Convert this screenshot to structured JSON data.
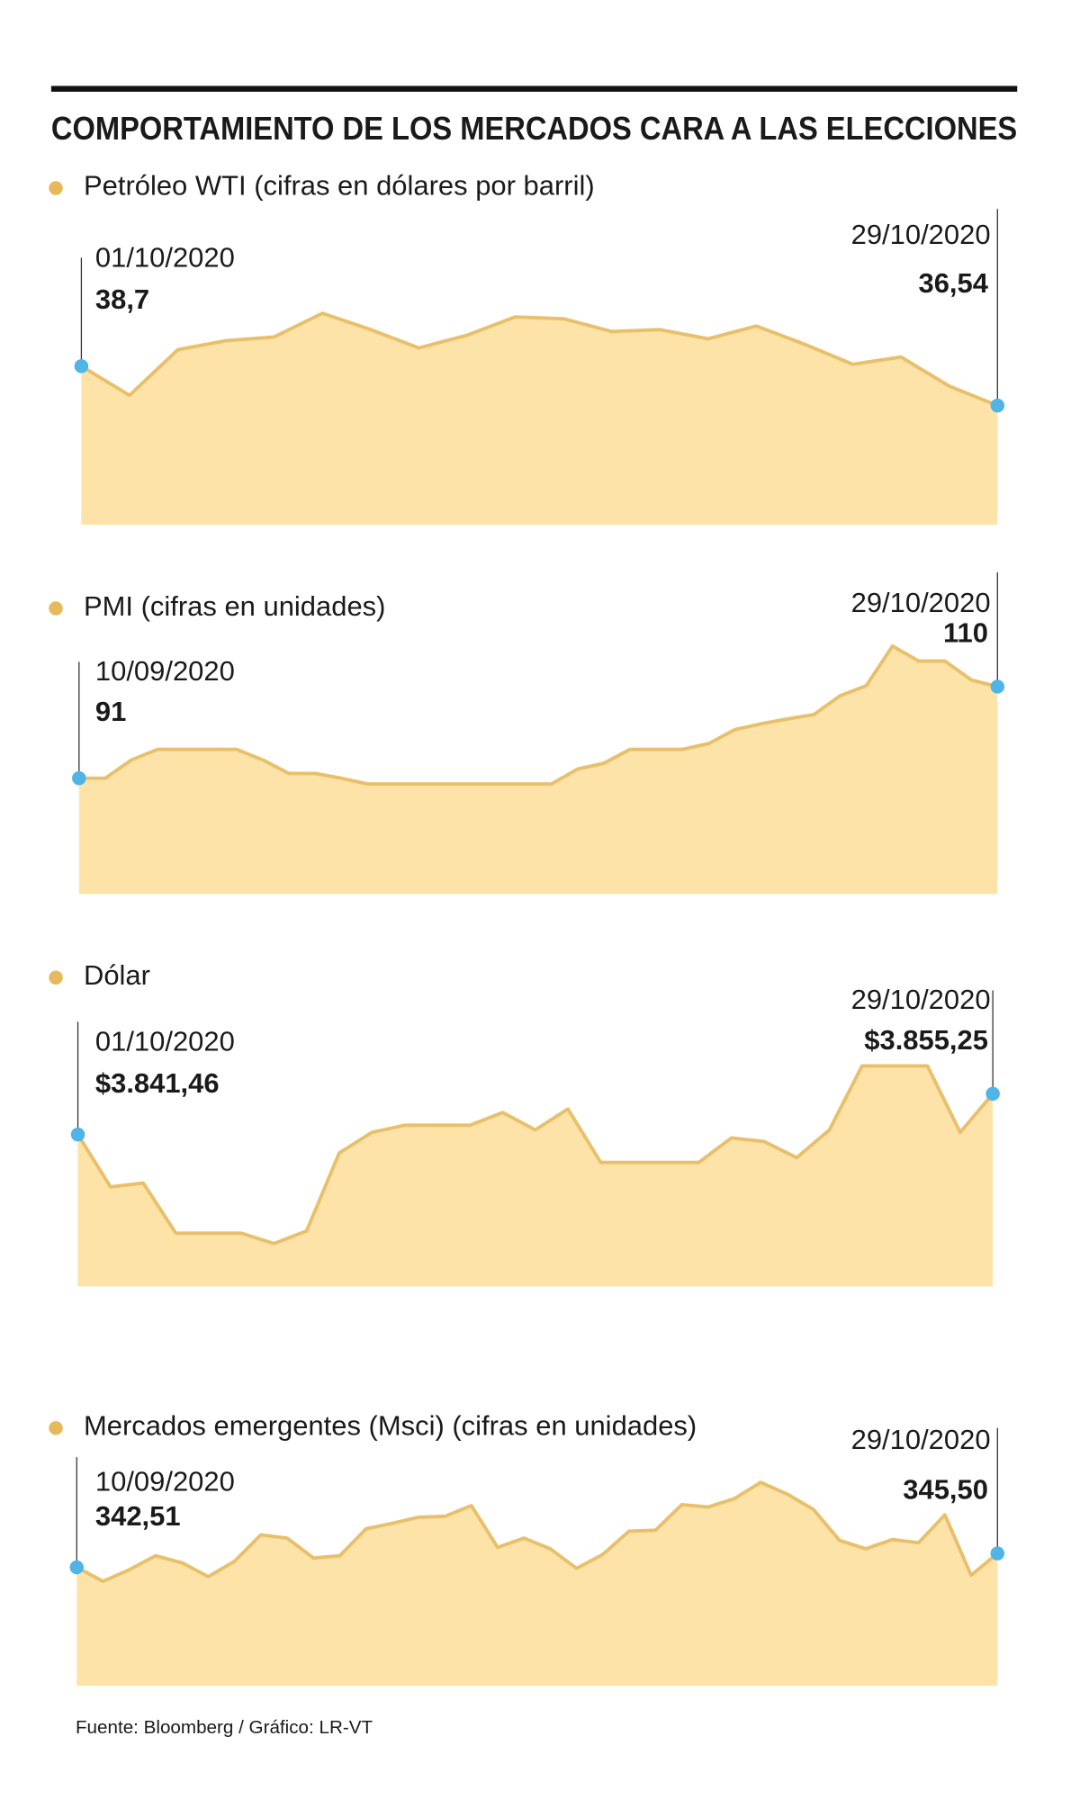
{
  "title": "COMPORTAMIENTO DE LOS MERCADOS CARA A LAS ELECCIONES",
  "source": "Fuente: Bloomberg / Gráfico: LR-VT",
  "chart_data": [
    {
      "type": "area",
      "title": "Petróleo WTI (cifras en dólares por barril)",
      "categories": [
        "01/10/2020",
        null,
        null,
        null,
        null,
        null,
        null,
        null,
        null,
        null,
        null,
        null,
        null,
        null,
        null,
        null,
        null,
        null,
        null,
        "29/10/2020"
      ],
      "values": [
        38.7,
        37.1,
        39.6,
        40.1,
        40.3,
        41.6,
        40.7,
        39.7,
        40.4,
        41.4,
        41.3,
        40.6,
        40.7,
        40.2,
        40.9,
        39.9,
        38.8,
        39.2,
        37.6,
        36.54
      ],
      "value_labels": [
        "38,7",
        null,
        null,
        null,
        null,
        null,
        null,
        null,
        null,
        null,
        null,
        null,
        null,
        null,
        null,
        null,
        null,
        null,
        null,
        "36,54"
      ],
      "ylim": [
        30,
        47
      ],
      "color": "#fde3a8",
      "line_color": "#e8c06c",
      "marker_color": "#4fb4e8"
    },
    {
      "type": "area",
      "title": "PMI (cifras en unidades)",
      "categories": [
        "10/09/2020",
        null,
        null,
        null,
        null,
        null,
        null,
        null,
        null,
        null,
        null,
        null,
        null,
        null,
        null,
        null,
        null,
        null,
        null,
        null,
        null,
        null,
        null,
        null,
        null,
        null,
        null,
        null,
        null,
        null,
        null,
        null,
        null,
        null,
        null,
        "29/10/2020"
      ],
      "values": [
        91,
        91,
        94.8,
        97,
        97,
        97,
        97,
        94.8,
        92,
        92,
        91,
        89.8,
        89.8,
        89.8,
        89.8,
        89.8,
        89.8,
        89.8,
        89.8,
        92.9,
        94.1,
        97,
        97,
        97,
        98.2,
        101.1,
        102.3,
        103.3,
        104.2,
        108.1,
        110.2,
        118.4,
        115.3,
        115.3,
        111.4,
        110
      ],
      "value_labels": [
        "91",
        null,
        null,
        null,
        null,
        null,
        null,
        null,
        null,
        null,
        null,
        null,
        null,
        null,
        null,
        null,
        null,
        null,
        null,
        null,
        null,
        null,
        null,
        null,
        null,
        null,
        null,
        null,
        null,
        null,
        null,
        null,
        null,
        null,
        null,
        "110"
      ],
      "ylim": [
        67,
        132
      ],
      "color": "#fde3a8",
      "line_color": "#e8c06c",
      "marker_color": "#4fb4e8"
    },
    {
      "type": "area",
      "title": "Dólar",
      "categories": [
        "01/10/2020",
        null,
        null,
        null,
        null,
        null,
        null,
        null,
        null,
        null,
        null,
        null,
        null,
        null,
        null,
        null,
        null,
        null,
        null,
        null,
        null,
        null,
        null,
        null,
        null,
        null,
        null,
        null,
        "29/10/2020"
      ],
      "values": [
        3841.46,
        3823.7,
        3825.0,
        3808.0,
        3808.0,
        3808.0,
        3804.5,
        3808.8,
        3835.2,
        3842.2,
        3844.6,
        3844.6,
        3844.6,
        3848.9,
        3843.0,
        3850.1,
        3832.0,
        3832.0,
        3832.0,
        3832.0,
        3840.3,
        3839.1,
        3833.6,
        3843.0,
        3864.7,
        3864.7,
        3864.7,
        3842.2,
        3855.25
      ],
      "value_labels": [
        "$3.841,46",
        null,
        null,
        null,
        null,
        null,
        null,
        null,
        null,
        null,
        null,
        null,
        null,
        null,
        null,
        null,
        null,
        null,
        null,
        null,
        null,
        null,
        null,
        null,
        null,
        null,
        null,
        null,
        "$3.855,25"
      ],
      "ylim": [
        3790,
        3884
      ],
      "color": "#fde3a8",
      "line_color": "#e8c06c",
      "marker_color": "#4fb4e8"
    },
    {
      "type": "area",
      "title": "Mercados emergentes  (Msci) (cifras en unidades)",
      "categories": [
        "10/09/2020",
        null,
        null,
        null,
        null,
        null,
        null,
        null,
        null,
        null,
        null,
        null,
        null,
        null,
        null,
        null,
        null,
        null,
        null,
        null,
        null,
        null,
        null,
        null,
        null,
        null,
        null,
        null,
        null,
        null,
        null,
        null,
        null,
        null,
        null,
        "29/10/2020"
      ],
      "values": [
        342.51,
        339.5,
        342.0,
        345.0,
        343.5,
        340.5,
        343.8,
        349.5,
        348.8,
        344.5,
        345.0,
        350.8,
        352.0,
        353.3,
        353.5,
        355.8,
        346.8,
        348.8,
        346.5,
        342.3,
        345.3,
        350.3,
        350.5,
        356.0,
        355.5,
        357.3,
        360.8,
        358.3,
        355.0,
        348.3,
        346.5,
        348.5,
        347.8,
        353.8,
        340.8,
        345.5
      ],
      "value_labels": [
        "342,51",
        null,
        null,
        null,
        null,
        null,
        null,
        null,
        null,
        null,
        null,
        null,
        null,
        null,
        null,
        null,
        null,
        null,
        null,
        null,
        null,
        null,
        null,
        null,
        null,
        null,
        null,
        null,
        null,
        null,
        null,
        null,
        null,
        null,
        null,
        "345,50"
      ],
      "ylim": [
        317,
        375
      ],
      "color": "#fde3a8",
      "line_color": "#e8c06c",
      "marker_color": "#4fb4e8"
    }
  ]
}
